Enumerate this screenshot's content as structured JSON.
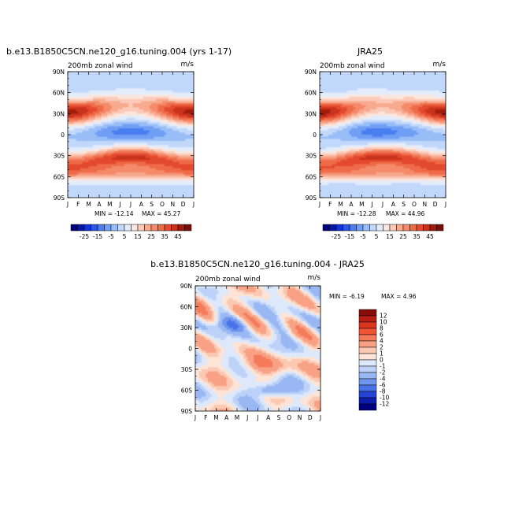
{
  "chart_data": [
    {
      "type": "heatmap",
      "title": "b.e13.B1850C5CN.ne120_g16.tuning.004 (yrs 1-17)",
      "subtitle_left": "200mb zonal wind",
      "subtitle_right": "m/s",
      "x": [
        "J",
        "F",
        "M",
        "A",
        "M",
        "J",
        "J",
        "A",
        "S",
        "O",
        "N",
        "D",
        "J"
      ],
      "y": [
        "90N",
        "60N",
        "30N",
        "0",
        "30S",
        "60S",
        "90S"
      ],
      "min_label": "MIN = -12.14",
      "max_label": "MAX =  45.27",
      "jets": {
        "nh_winter_peak": 45,
        "nh_summer_peak": 15,
        "sh_peak": 40,
        "eq_min": -12
      }
    },
    {
      "type": "heatmap",
      "title": "JRA25",
      "subtitle_left": "200mb zonal wind",
      "subtitle_right": "m/s",
      "x": [
        "J",
        "F",
        "M",
        "A",
        "M",
        "J",
        "J",
        "A",
        "S",
        "O",
        "N",
        "D",
        "J"
      ],
      "y": [
        "90N",
        "60N",
        "30N",
        "0",
        "30S",
        "60S",
        "90S"
      ],
      "min_label": "MIN = -12.28",
      "max_label": "MAX =  44.96",
      "jets": {
        "nh_winter_peak": 45,
        "nh_summer_peak": 15,
        "sh_peak": 40,
        "eq_min": -12
      }
    },
    {
      "type": "heatmap",
      "title": "b.e13.B1850C5CN.ne120_g16.tuning.004 - JRA25",
      "subtitle_left": "200mb zonal wind",
      "subtitle_right": "m/s",
      "x": [
        "J",
        "F",
        "M",
        "A",
        "M",
        "J",
        "J",
        "A",
        "S",
        "O",
        "N",
        "D",
        "J"
      ],
      "y": [
        "90N",
        "60N",
        "30N",
        "0",
        "30S",
        "60S",
        "90S"
      ],
      "min_label": "MIN =   -6.19",
      "max_label": "MAX =    4.96"
    }
  ],
  "colorbars": {
    "top": {
      "labels": [
        "-25",
        "-15",
        "-5",
        "5",
        "15",
        "25",
        "35",
        "45"
      ],
      "colors": [
        "#00007e",
        "#0018b0",
        "#1433d9",
        "#2c56e6",
        "#4a7ef0",
        "#6f9ef5",
        "#98bdf7",
        "#c2d8fa",
        "#e3ecfb",
        "#fbe6de",
        "#fbcab8",
        "#f8aa8f",
        "#f48a6a",
        "#ee6a48",
        "#e34a2d",
        "#c9311c",
        "#a01a10",
        "#7a0d08"
      ]
    },
    "diff": {
      "labels": [
        "12",
        "10",
        "8",
        "6",
        "4",
        "2",
        "1",
        "0",
        "-1",
        "-2",
        "-4",
        "-6",
        "-8",
        "-10",
        "-12"
      ],
      "colors": [
        "#860d0b",
        "#b91e15",
        "#dc3520",
        "#ef5435",
        "#f57a5a",
        "#f8a184",
        "#fbc8b2",
        "#fde4d6",
        "#dde8fb",
        "#bdd2f8",
        "#98b7f3",
        "#6f95ee",
        "#4a72e8",
        "#2544d6",
        "#0d1ca9",
        "#000080"
      ]
    }
  },
  "colors": {
    "axis": "#000000",
    "background": "#ffffff"
  }
}
